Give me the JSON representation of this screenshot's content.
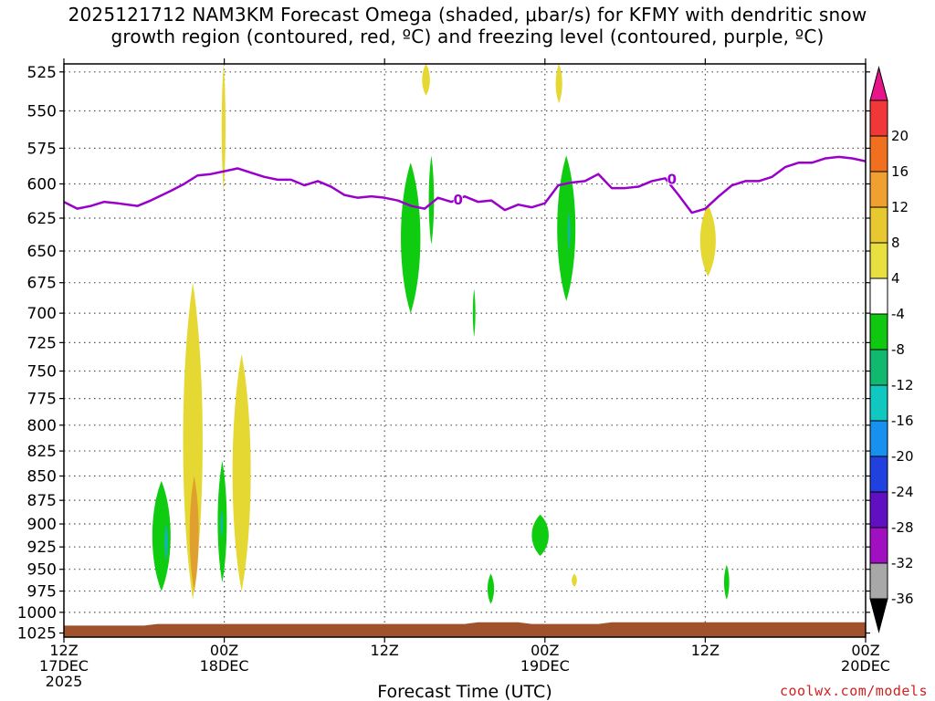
{
  "chart_data": {
    "type": "contour",
    "title_line1": "2025121712 NAM3KM Forecast Omega (shaded, μbar/s) for KFMY with dendritic snow",
    "title_line2": "growth region (contoured, red, ºC) and freezing level (contoured, purple, ºC)",
    "xlabel": "Forecast Time (UTC)",
    "y_levels_hpa": [
      525,
      550,
      575,
      600,
      625,
      650,
      675,
      700,
      725,
      750,
      775,
      800,
      825,
      850,
      875,
      900,
      925,
      950,
      975,
      1000,
      1025
    ],
    "y_scale": "log-pressure",
    "ylim_hpa": [
      520,
      1030
    ],
    "x_range_hours": [
      0,
      60
    ],
    "x_ticks": [
      {
        "hour": 0,
        "line1": "12Z",
        "line2": "17DEC",
        "line3": "2025"
      },
      {
        "hour": 12,
        "line1": "00Z",
        "line2": "18DEC",
        "line3": ""
      },
      {
        "hour": 24,
        "line1": "12Z",
        "line2": "",
        "line3": ""
      },
      {
        "hour": 36,
        "line1": "00Z",
        "line2": "19DEC",
        "line3": ""
      },
      {
        "hour": 48,
        "line1": "12Z",
        "line2": "",
        "line3": ""
      },
      {
        "hour": 60,
        "line1": "00Z",
        "line2": "20DEC",
        "line3": ""
      }
    ],
    "grid": true,
    "freezing_level": {
      "color": "#9900cc",
      "label": "0",
      "label_points": [
        [
          29.5,
          611
        ],
        [
          45.5,
          596
        ]
      ],
      "points": [
        [
          0,
          613
        ],
        [
          1,
          618
        ],
        [
          2,
          616
        ],
        [
          3,
          613
        ],
        [
          4,
          614
        ],
        [
          5.5,
          616
        ],
        [
          6.5,
          612
        ],
        [
          8,
          605
        ],
        [
          9,
          600
        ],
        [
          10,
          594
        ],
        [
          11,
          593
        ],
        [
          12,
          591
        ],
        [
          13,
          589
        ],
        [
          14,
          592
        ],
        [
          15,
          595
        ],
        [
          16,
          597
        ],
        [
          17,
          597
        ],
        [
          18,
          601
        ],
        [
          19,
          598
        ],
        [
          20,
          602
        ],
        [
          21,
          608
        ],
        [
          22,
          610
        ],
        [
          23,
          609
        ],
        [
          24,
          610
        ],
        [
          25,
          612
        ],
        [
          26,
          616
        ],
        [
          27,
          618
        ],
        [
          28,
          610
        ],
        [
          29,
          613
        ],
        [
          30,
          609
        ],
        [
          31,
          613
        ],
        [
          32,
          612
        ],
        [
          33,
          619
        ],
        [
          34,
          615
        ],
        [
          35,
          617
        ],
        [
          36,
          614
        ],
        [
          37,
          601
        ],
        [
          38,
          599
        ],
        [
          39,
          598
        ],
        [
          40,
          593
        ],
        [
          41,
          603
        ],
        [
          42,
          603
        ],
        [
          43,
          602
        ],
        [
          44,
          598
        ],
        [
          45,
          596
        ],
        [
          46,
          608
        ],
        [
          47,
          621
        ],
        [
          48,
          618
        ],
        [
          49,
          609
        ],
        [
          50,
          601
        ],
        [
          51,
          598
        ],
        [
          52,
          598
        ],
        [
          53,
          595
        ],
        [
          54,
          588
        ],
        [
          55,
          585
        ],
        [
          56,
          585
        ],
        [
          57,
          582
        ],
        [
          58,
          581
        ],
        [
          59,
          582
        ],
        [
          60,
          584
        ]
      ]
    },
    "omega_features": [
      {
        "kind": "pos4",
        "x0": 11.8,
        "x1": 12.1,
        "p_top": 520,
        "p_bot": 605
      },
      {
        "kind": "pos4",
        "x0": 26.8,
        "x1": 27.4,
        "p_top": 520,
        "p_bot": 540
      },
      {
        "kind": "pos4",
        "x0": 36.8,
        "x1": 37.3,
        "p_top": 520,
        "p_bot": 545
      },
      {
        "kind": "pos4",
        "x0": 8.9,
        "x1": 10.4,
        "p_top": 675,
        "p_bot": 985
      },
      {
        "kind": "pos4",
        "x0": 12.6,
        "x1": 14.0,
        "p_top": 735,
        "p_bot": 975
      },
      {
        "kind": "pos4",
        "x0": 47.6,
        "x1": 48.8,
        "p_top": 615,
        "p_bot": 670
      },
      {
        "kind": "pos4",
        "x0": 38.0,
        "x1": 38.4,
        "p_top": 955,
        "p_bot": 970
      },
      {
        "kind": "pos8",
        "x0": 9.4,
        "x1": 10.1,
        "p_top": 850,
        "p_bot": 975
      },
      {
        "kind": "neg4",
        "x0": 6.6,
        "x1": 8.0,
        "p_top": 855,
        "p_bot": 975
      },
      {
        "kind": "neg4",
        "x0": 11.5,
        "x1": 12.2,
        "p_top": 835,
        "p_bot": 965
      },
      {
        "kind": "neg4",
        "x0": 25.2,
        "x1": 26.7,
        "p_top": 585,
        "p_bot": 700
      },
      {
        "kind": "neg4",
        "x0": 27.3,
        "x1": 27.7,
        "p_top": 580,
        "p_bot": 645
      },
      {
        "kind": "neg4",
        "x0": 36.9,
        "x1": 38.3,
        "p_top": 580,
        "p_bot": 690
      },
      {
        "kind": "neg4",
        "x0": 30.6,
        "x1": 30.8,
        "p_top": 680,
        "p_bot": 720
      },
      {
        "kind": "neg4",
        "x0": 35.0,
        "x1": 36.3,
        "p_top": 890,
        "p_bot": 935
      },
      {
        "kind": "neg4",
        "x0": 31.7,
        "x1": 32.2,
        "p_top": 955,
        "p_bot": 990
      },
      {
        "kind": "neg4",
        "x0": 49.4,
        "x1": 49.8,
        "p_top": 945,
        "p_bot": 985
      },
      {
        "kind": "neg8",
        "x0": 7.5,
        "x1": 7.8,
        "p_top": 900,
        "p_bot": 940
      },
      {
        "kind": "neg8",
        "x0": 11.7,
        "x1": 11.9,
        "p_top": 885,
        "p_bot": 915
      },
      {
        "kind": "neg8",
        "x0": 37.7,
        "x1": 37.9,
        "p_top": 620,
        "p_bot": 650
      }
    ],
    "surface": {
      "color": "#a0522d",
      "top_hpa": [
        [
          0,
          1016
        ],
        [
          6,
          1016
        ],
        [
          7,
          1014
        ],
        [
          30,
          1014
        ],
        [
          31,
          1012
        ],
        [
          34,
          1012
        ],
        [
          35,
          1014
        ],
        [
          40,
          1014
        ],
        [
          41,
          1012
        ],
        [
          60,
          1012
        ]
      ]
    },
    "colorbar": {
      "ticks": [
        "20",
        "16",
        "12",
        "8",
        "4",
        "-4",
        "-8",
        "-12",
        "-16",
        "-20",
        "-24",
        "-28",
        "-32",
        "-36"
      ],
      "colors": [
        "#e8148a",
        "#f03838",
        "#f07020",
        "#f0a030",
        "#e8c830",
        "#e8e040",
        "#ffffff",
        "#10c810",
        "#10b870",
        "#10c8c0",
        "#1890f0",
        "#2040e0",
        "#6010c0",
        "#a010c0",
        "#a8a8a8",
        "#000000"
      ]
    },
    "colors": {
      "pos4": "#e6d833",
      "pos8": "#e0a030",
      "neg4": "#10cc10",
      "neg8": "#10b8a0",
      "grid": "#555555"
    }
  },
  "credit": "coolwx.com/models"
}
